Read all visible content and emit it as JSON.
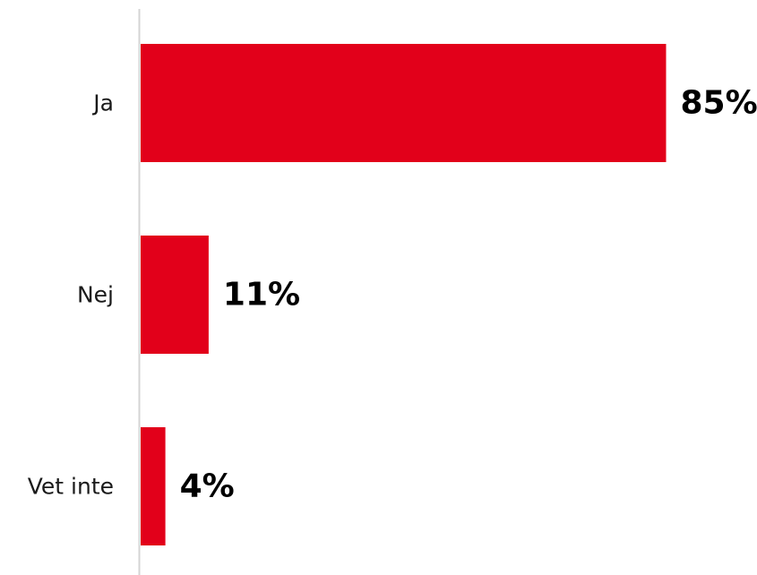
{
  "chart_data": {
    "type": "bar",
    "orientation": "horizontal",
    "categories": [
      "Ja",
      "Nej",
      "Vet inte"
    ],
    "values": [
      85,
      11,
      4
    ],
    "value_labels": [
      "85%",
      "11%",
      "4%"
    ],
    "xlim": [
      0,
      100
    ],
    "bar_color": "#e2001a",
    "axis_color": "#d4d4d4",
    "grid": false,
    "legend": "none"
  }
}
